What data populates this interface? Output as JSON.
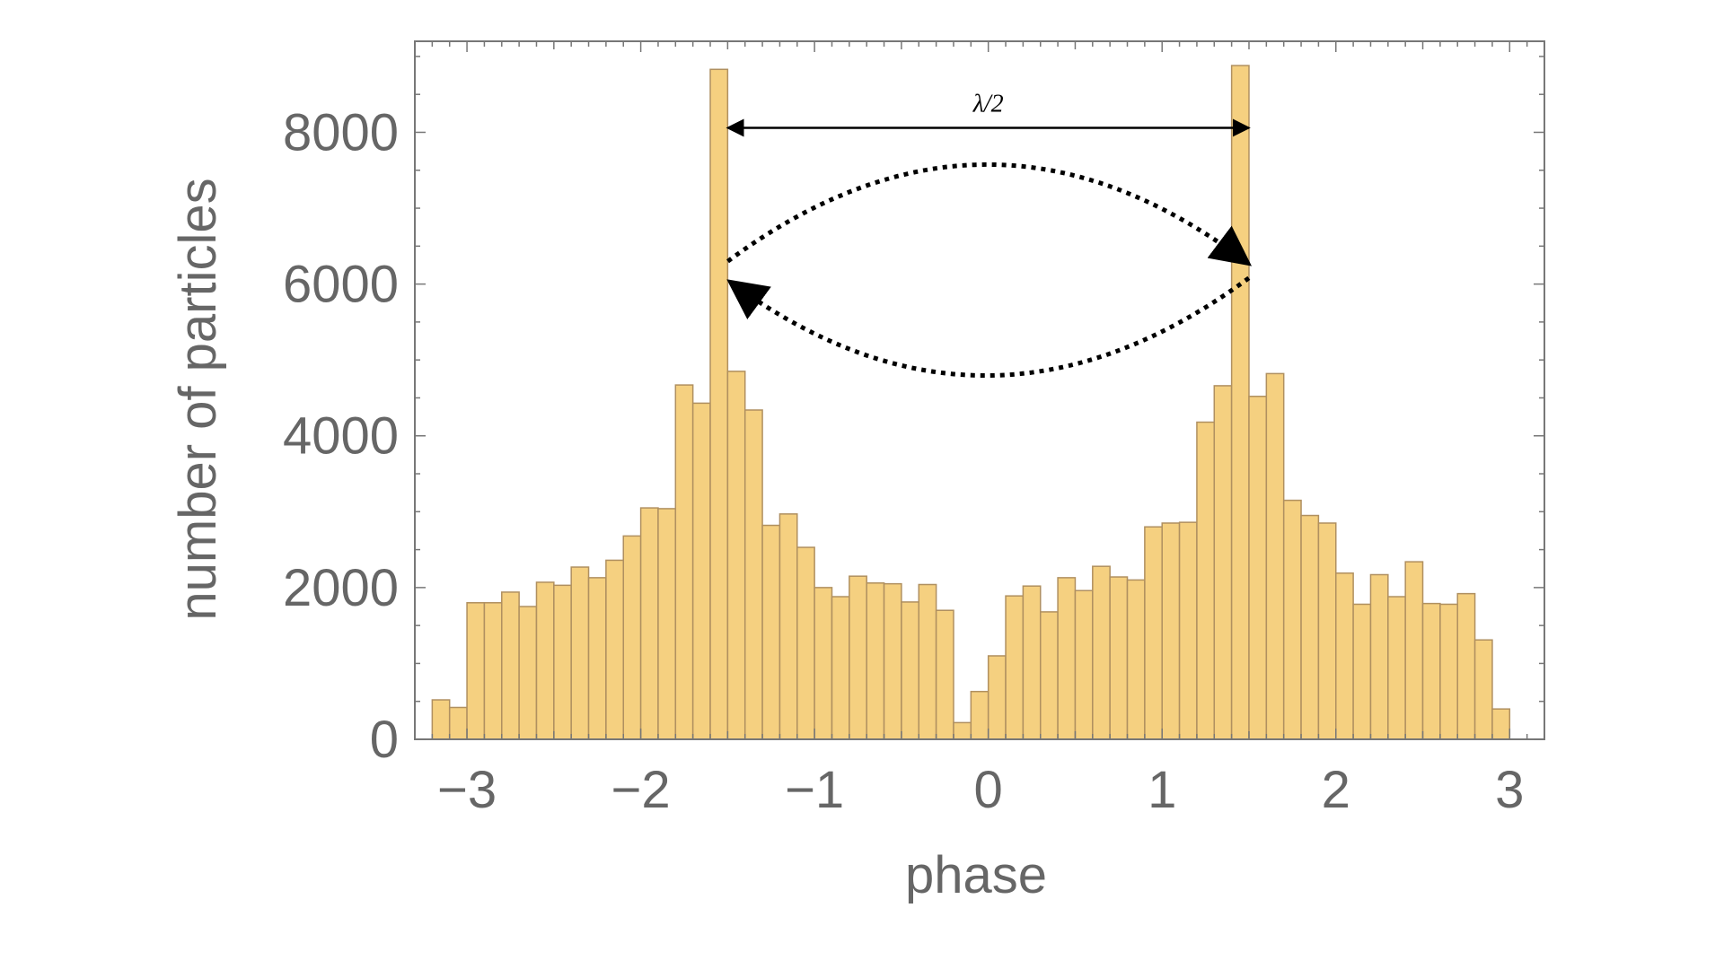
{
  "chart_data": {
    "type": "bar",
    "title": "",
    "xlabel": "phase",
    "ylabel": "number of particles",
    "xlim": [
      -3.3,
      3.2
    ],
    "ylim": [
      0,
      9200
    ],
    "xticks": [
      -3,
      -2,
      -1,
      0,
      1,
      2,
      3
    ],
    "xtick_labels": [
      "−3",
      "−2",
      "−1",
      "0",
      "1",
      "2",
      "3"
    ],
    "yticks": [
      0,
      2000,
      4000,
      6000,
      8000
    ],
    "ytick_labels": [
      "0",
      "2000",
      "4000",
      "6000",
      "8000"
    ],
    "bin_start": -3.2,
    "bin_width": 0.1,
    "values": [
      520,
      420,
      1800,
      1800,
      1940,
      1750,
      2070,
      2030,
      2270,
      2130,
      2360,
      2680,
      3050,
      3040,
      4670,
      4430,
      8830,
      4850,
      4340,
      2820,
      2970,
      2530,
      2000,
      1880,
      2150,
      2060,
      2050,
      1810,
      2040,
      1700,
      220,
      630,
      1100,
      1890,
      2020,
      1680,
      2130,
      1960,
      2280,
      2140,
      2100,
      2800,
      2850,
      2860,
      4180,
      4660,
      8880,
      4520,
      4820,
      3150,
      2950,
      2850,
      2190,
      1780,
      2170,
      1880,
      2340,
      1790,
      1780,
      1920,
      1310,
      400
    ],
    "grid": false,
    "legend": "none",
    "bar_color": "#F5D080",
    "bar_edge_color": "#B09060",
    "annotations": {
      "lambda_label": "λ/2",
      "arrow_from_x": -1.52,
      "arrow_to_x": 1.52,
      "arrow_y": 8000
    }
  }
}
